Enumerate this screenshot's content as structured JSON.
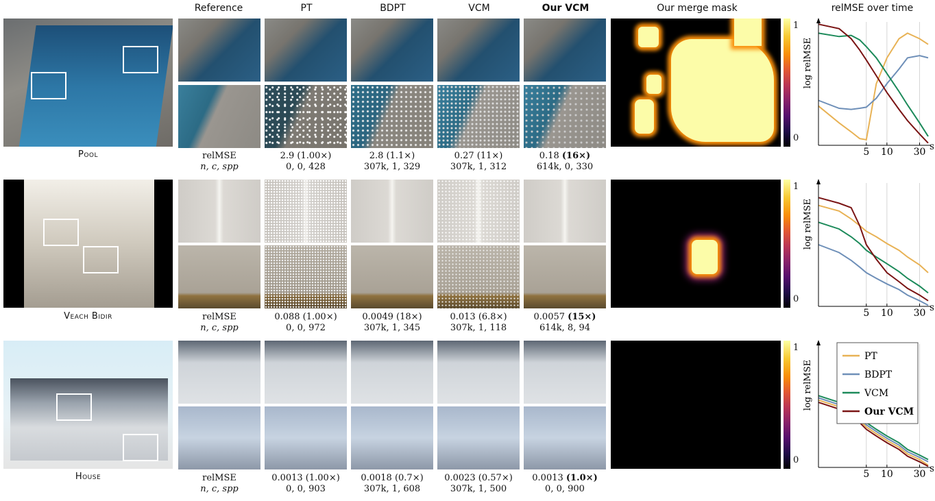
{
  "headers": {
    "reference": "Reference",
    "pt": "PT",
    "bdpt": "BDPT",
    "vcm": "VCM",
    "ourvcm": "Our VCM",
    "mask": "Our merge mask",
    "relmse": "relMSE over time"
  },
  "stat_labels": {
    "l1": "relMSE",
    "l2": "n, c, spp"
  },
  "colorbar": {
    "max": "1",
    "min": "0",
    "axis": "log relMSE"
  },
  "xaxis": {
    "t1": "5",
    "t2": "10",
    "t3": "30",
    "unit": "s"
  },
  "legend": {
    "pt": "PT",
    "bdpt": "BDPT",
    "vcm": "VCM",
    "ourvcm": "Our VCM"
  },
  "colors": {
    "pt": "#e8b255",
    "bdpt": "#6e8fb8",
    "vcm": "#1c8a5a",
    "ourvcm": "#7a1414"
  },
  "rows": [
    {
      "scene": "Pool",
      "pt": {
        "l1": "2.9 (1.00×)",
        "l2": "0, 0, 428"
      },
      "bdpt": {
        "l1": "2.8 (1.1×)",
        "l2": "307k, 1, 329"
      },
      "vcm": {
        "l1": "0.27 (11×)",
        "l2": "307k, 1, 312"
      },
      "ourvcm": {
        "l1": "0.18",
        "l1b": "(16×)",
        "l2": "614k, 0, 330"
      }
    },
    {
      "scene": "Veach Bidir",
      "pt": {
        "l1": "0.088 (1.00×)",
        "l2": "0, 0, 972"
      },
      "bdpt": {
        "l1": "0.0049 (18×)",
        "l2": "307k, 1, 345"
      },
      "vcm": {
        "l1": "0.013 (6.8×)",
        "l2": "307k, 1, 118"
      },
      "ourvcm": {
        "l1": "0.0057",
        "l1b": "(15×)",
        "l2": "614k, 8, 94"
      }
    },
    {
      "scene": "House",
      "pt": {
        "l1": "0.0013 (1.00×)",
        "l2": "0, 0, 903"
      },
      "bdpt": {
        "l1": "0.0018 (0.7×)",
        "l2": "307k, 1, 608"
      },
      "vcm": {
        "l1": "0.0023 (0.57×)",
        "l2": "307k, 1, 500"
      },
      "ourvcm": {
        "l1": "0.0013",
        "l1b": "(1.0×)",
        "l2": "0, 0, 900"
      }
    }
  ],
  "chart_data": [
    {
      "type": "line",
      "title": "relMSE over time",
      "ylabel": "log relMSE",
      "xlabel": "s",
      "x_scale": "log",
      "x_ticks": [
        5,
        10,
        30
      ],
      "x": [
        1,
        2,
        3,
        4,
        5,
        7,
        10,
        15,
        20,
        30,
        40
      ],
      "series": [
        {
          "name": "PT",
          "values": [
            0.35,
            0.2,
            0.12,
            0.06,
            0.05,
            0.55,
            0.78,
            0.95,
            1.0,
            0.95,
            0.9
          ]
        },
        {
          "name": "BDPT",
          "values": [
            0.4,
            0.33,
            0.32,
            0.33,
            0.34,
            0.42,
            0.55,
            0.68,
            0.78,
            0.8,
            0.78
          ]
        },
        {
          "name": "VCM",
          "values": [
            1.0,
            0.97,
            0.98,
            0.94,
            0.88,
            0.78,
            0.64,
            0.48,
            0.36,
            0.2,
            0.08
          ]
        },
        {
          "name": "Our VCM",
          "values": [
            1.08,
            1.04,
            0.95,
            0.85,
            0.76,
            0.62,
            0.47,
            0.32,
            0.22,
            0.1,
            0.02
          ]
        }
      ]
    },
    {
      "type": "line",
      "ylabel": "log relMSE",
      "xlabel": "s",
      "x_scale": "log",
      "x_ticks": [
        5,
        10,
        30
      ],
      "x": [
        1,
        2,
        3,
        4,
        5,
        7,
        10,
        15,
        20,
        30,
        40
      ],
      "series": [
        {
          "name": "PT",
          "values": [
            0.9,
            0.85,
            0.78,
            0.72,
            0.67,
            0.62,
            0.56,
            0.5,
            0.44,
            0.37,
            0.3
          ]
        },
        {
          "name": "BDPT",
          "values": [
            0.55,
            0.48,
            0.41,
            0.35,
            0.3,
            0.25,
            0.2,
            0.15,
            0.1,
            0.05,
            0.01
          ]
        },
        {
          "name": "VCM",
          "values": [
            0.75,
            0.69,
            0.62,
            0.56,
            0.5,
            0.44,
            0.38,
            0.31,
            0.25,
            0.18,
            0.12
          ]
        },
        {
          "name": "Our VCM",
          "values": [
            0.97,
            0.92,
            0.88,
            0.72,
            0.55,
            0.42,
            0.3,
            0.22,
            0.16,
            0.1,
            0.05
          ]
        }
      ]
    },
    {
      "type": "line",
      "ylabel": "log relMSE",
      "xlabel": "s",
      "x_scale": "log",
      "x_ticks": [
        5,
        10,
        30
      ],
      "x": [
        1,
        2,
        3,
        4,
        5,
        7,
        10,
        15,
        20,
        30,
        40
      ],
      "series": [
        {
          "name": "PT",
          "values": [
            0.6,
            0.54,
            0.48,
            0.42,
            0.36,
            0.3,
            0.24,
            0.18,
            0.12,
            0.07,
            0.02
          ]
        },
        {
          "name": "BDPT",
          "values": [
            0.62,
            0.56,
            0.5,
            0.44,
            0.38,
            0.32,
            0.26,
            0.2,
            0.14,
            0.09,
            0.05
          ]
        },
        {
          "name": "VCM",
          "values": [
            0.64,
            0.58,
            0.52,
            0.46,
            0.4,
            0.34,
            0.28,
            0.22,
            0.16,
            0.11,
            0.07
          ]
        },
        {
          "name": "Our VCM",
          "values": [
            0.58,
            0.52,
            0.46,
            0.4,
            0.34,
            0.28,
            0.22,
            0.16,
            0.1,
            0.05,
            0.01
          ]
        }
      ]
    }
  ]
}
